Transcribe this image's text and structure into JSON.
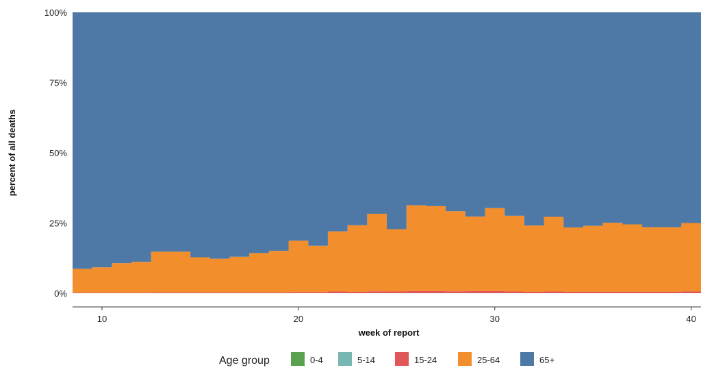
{
  "chart_data": {
    "type": "area",
    "xlabel": "week of report",
    "ylabel": "percent of all deaths",
    "xlim": [
      8.5,
      40.5
    ],
    "ylim": [
      0,
      100
    ],
    "x_ticks": [
      10,
      20,
      30,
      40
    ],
    "y_ticks": [
      0,
      25,
      50,
      75,
      100
    ],
    "y_tick_labels": [
      "0%",
      "25%",
      "50%",
      "75%",
      "100%"
    ],
    "legend_title": "Age group",
    "legend_position": "bottom",
    "x": [
      9,
      10,
      11,
      12,
      13,
      14,
      15,
      16,
      17,
      18,
      19,
      20,
      21,
      22,
      23,
      24,
      25,
      26,
      27,
      28,
      29,
      30,
      31,
      32,
      33,
      34,
      35,
      36,
      37,
      38,
      39,
      40
    ],
    "series": [
      {
        "name": "0-4",
        "color": "#59a14f",
        "values": [
          0,
          0,
          0,
          0,
          0,
          0,
          0,
          0,
          0,
          0,
          0,
          0,
          0,
          0,
          0,
          0,
          0,
          0,
          0,
          0,
          0,
          0,
          0,
          0,
          0,
          0,
          0,
          0,
          0,
          0,
          0,
          0
        ]
      },
      {
        "name": "5-14",
        "color": "#76b7b2",
        "values": [
          0,
          0,
          0,
          0,
          0,
          0,
          0,
          0,
          0,
          0,
          0,
          0,
          0,
          0,
          0,
          0,
          0,
          0,
          0,
          0,
          0,
          0,
          0,
          0,
          0,
          0,
          0,
          0,
          0,
          0,
          0,
          0
        ]
      },
      {
        "name": "15-24",
        "color": "#e15759",
        "values": [
          0.2,
          0.2,
          0.2,
          0.2,
          0.3,
          0.3,
          0.3,
          0.3,
          0.3,
          0.3,
          0.3,
          0.4,
          0.4,
          0.6,
          0.5,
          0.7,
          0.6,
          0.8,
          0.8,
          0.7,
          0.8,
          0.8,
          0.6,
          0.5,
          0.6,
          0.5,
          0.5,
          0.5,
          0.5,
          0.5,
          0.5,
          0.6
        ]
      },
      {
        "name": "25-64",
        "color": "#f28e2b",
        "values": [
          8.5,
          9,
          10.5,
          11,
          14.5,
          14.5,
          12.5,
          12,
          12.7,
          14,
          14.8,
          18.3,
          16.5,
          21.4,
          23.7,
          27.6,
          22.2,
          30.5,
          30.2,
          28.5,
          26.5,
          29.5,
          27,
          23.6,
          26.6,
          22.9,
          23.5,
          24.6,
          24,
          23,
          23,
          24.4
        ]
      },
      {
        "name": "65+",
        "color": "#4e79a7",
        "values": [
          91.3,
          90.8,
          89.3,
          88.8,
          85.2,
          85.2,
          87.2,
          87.7,
          87,
          85.7,
          84.9,
          81.3,
          83.1,
          78,
          75.8,
          71.7,
          77.2,
          68.7,
          69,
          70.8,
          72.7,
          69.7,
          72.4,
          75.9,
          72.8,
          76.6,
          76,
          74.9,
          75.5,
          76.5,
          76.5,
          75
        ]
      }
    ]
  }
}
